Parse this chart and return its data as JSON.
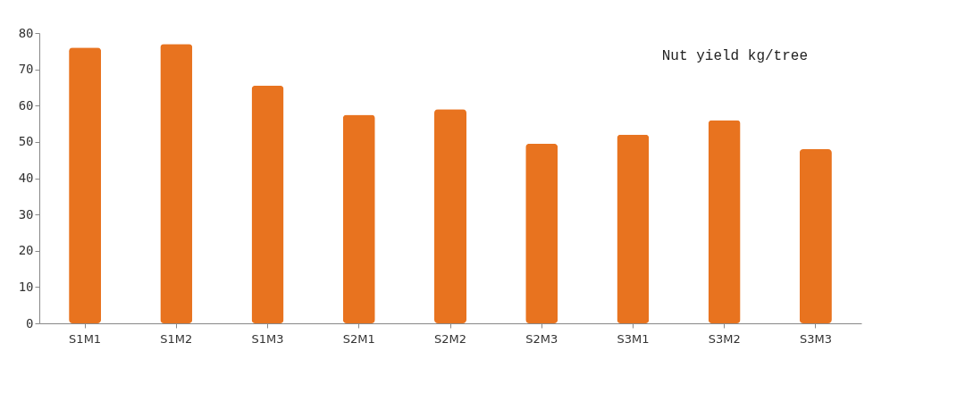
{
  "chart_data": {
    "type": "bar",
    "title": "Nut yield kg/tree",
    "categories": [
      "S1M1",
      "S1M2",
      "S1M3",
      "S2M1",
      "S2M2",
      "S2M3",
      "S3M1",
      "S3M2",
      "S3M3"
    ],
    "values": [
      76,
      77,
      65.5,
      57.5,
      59,
      49.5,
      52,
      56,
      48
    ],
    "color": "#e8731f",
    "ylim": [
      0,
      80
    ],
    "yticks": [
      0,
      10,
      20,
      30,
      40,
      50,
      60,
      70,
      80
    ],
    "grid": false
  }
}
